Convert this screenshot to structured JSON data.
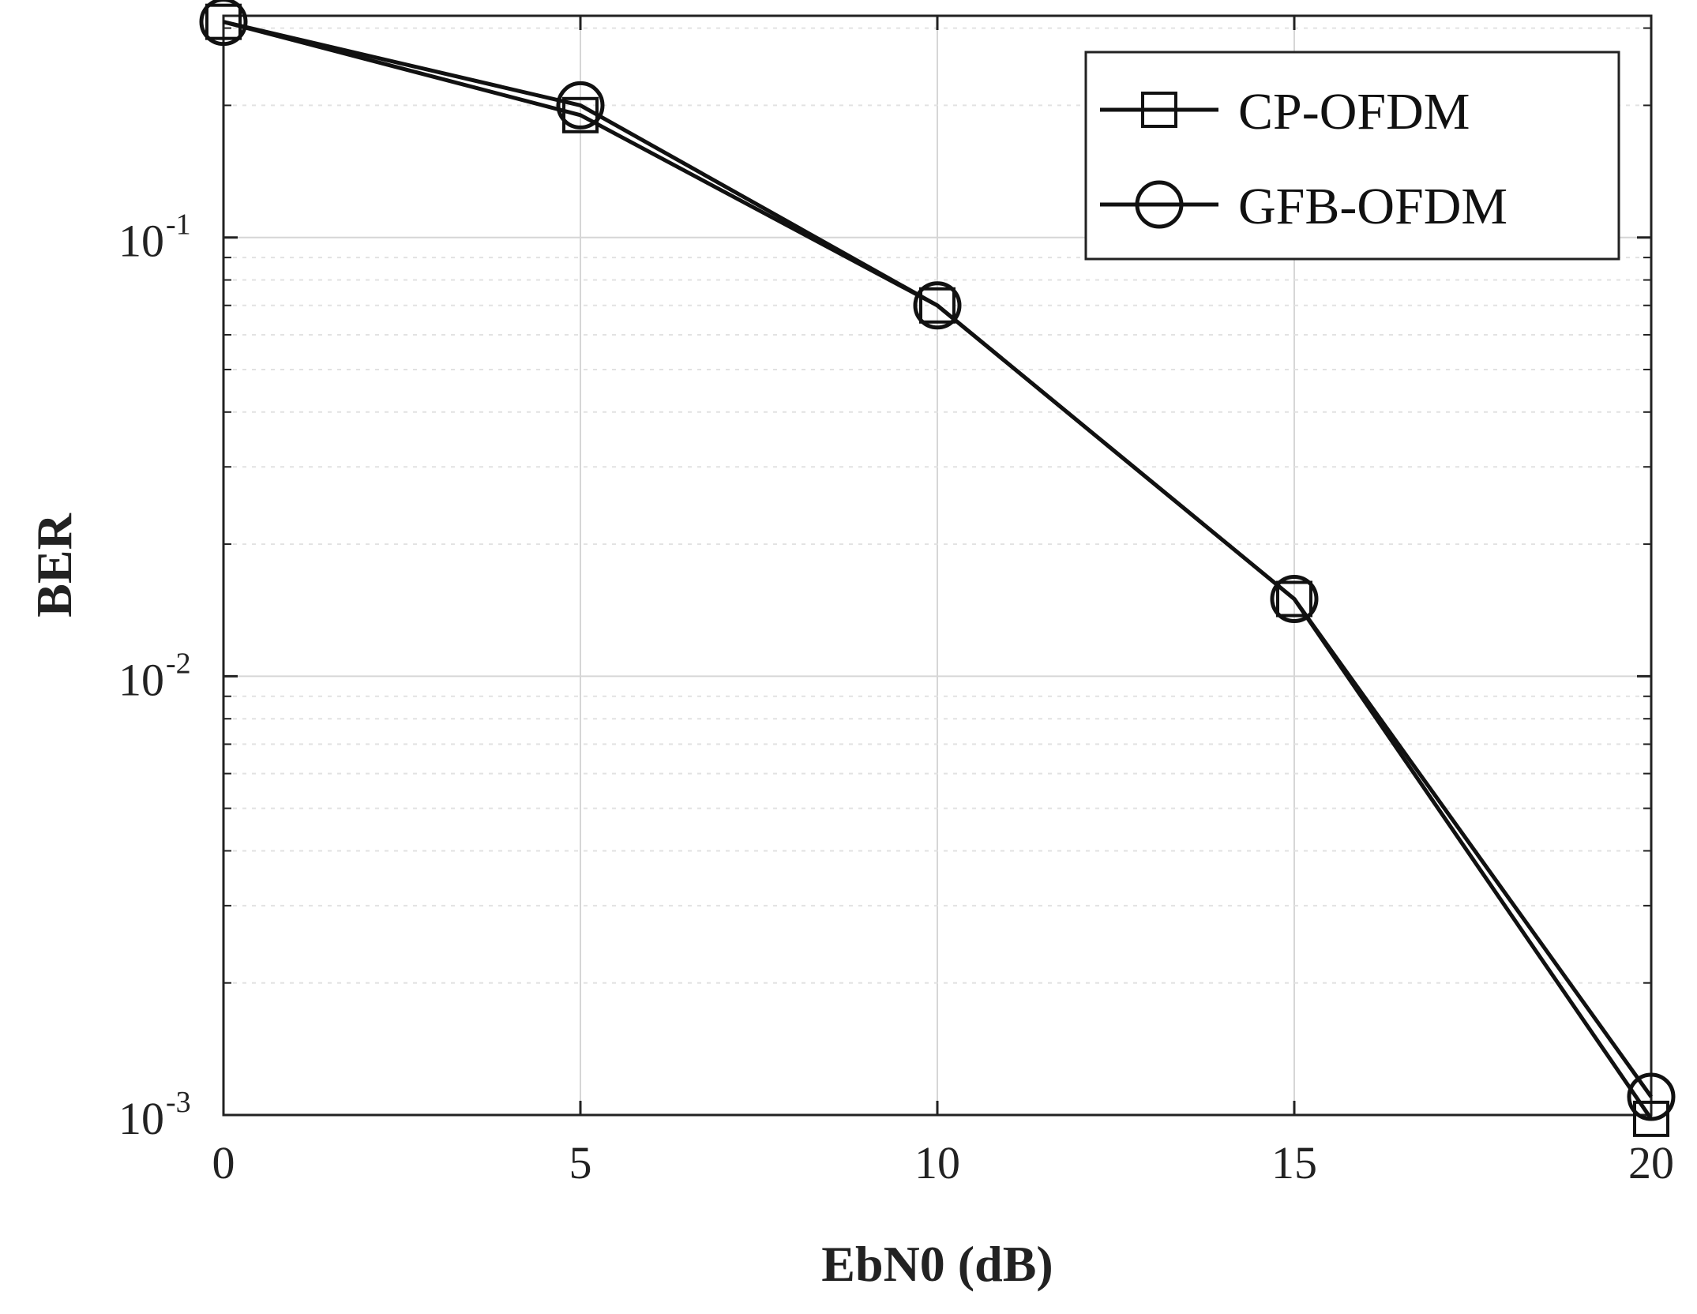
{
  "chart_data": {
    "type": "line",
    "xlabel": "EbN0 (dB)",
    "ylabel": "BER",
    "xlim": [
      0,
      20
    ],
    "ylim": [
      0.001,
      0.32
    ],
    "yscale": "log",
    "grid": true,
    "legend_position": "top-right",
    "x_ticks": [
      "0",
      "5",
      "10",
      "15",
      "20"
    ],
    "y_ticks": [
      {
        "base": "10",
        "exp": "-3",
        "value": 0.001
      },
      {
        "base": "10",
        "exp": "-2",
        "value": 0.01
      },
      {
        "base": "10",
        "exp": "-1",
        "value": 0.1
      }
    ],
    "x": [
      0,
      5,
      10,
      15,
      20
    ],
    "series": [
      {
        "name": "CP-OFDM",
        "marker": "square",
        "color": "#111111",
        "values": [
          0.31,
          0.19,
          0.07,
          0.015,
          0.00098
        ]
      },
      {
        "name": "GFB-OFDM",
        "marker": "circle",
        "color": "#111111",
        "values": [
          0.31,
          0.2,
          0.07,
          0.015,
          0.0011
        ]
      }
    ]
  }
}
